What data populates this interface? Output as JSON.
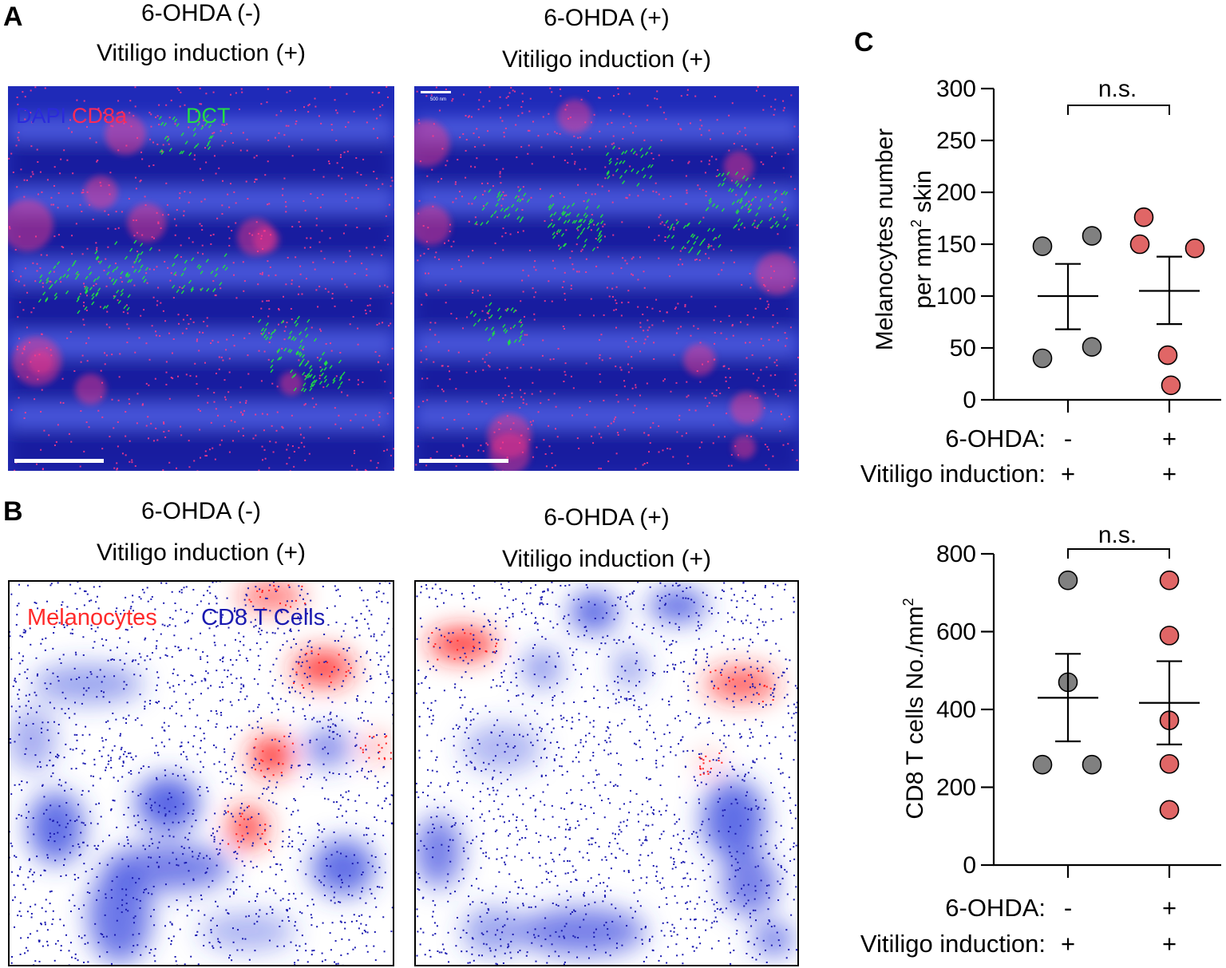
{
  "panel_labels": {
    "a": "A",
    "b": "B",
    "c": "C"
  },
  "panel_a": {
    "left_title_1": "6-OHDA (-)",
    "left_title_2": "Vitiligo induction (+)",
    "right_title_1": "6-OHDA (+)",
    "right_title_2": "Vitiligo induction (+)",
    "legend_dapi": "DAPI",
    "legend_cd8a": "CD8a",
    "legend_dct": "DCT",
    "scale_text": "500 nm",
    "colors": {
      "dapi": "#2a2adb",
      "cd8a": "#ff2a55",
      "dct": "#22dd44",
      "background": "#1f2ab8"
    }
  },
  "panel_b": {
    "left_title_1": "6-OHDA (-)",
    "left_title_2": "Vitiligo induction (+)",
    "right_title_1": "6-OHDA (+)",
    "right_title_2": "Vitiligo induction (+)",
    "legend_melanocytes": "Melanocytes",
    "legend_cd8": "CD8 T Cells",
    "colors": {
      "melanocytes": "#ff2a2a",
      "cd8": "#1a1ab0"
    }
  },
  "chart_data": [
    {
      "type": "scatter",
      "title": "",
      "ylabel": "Melanocytes number per mm² skin",
      "ylabel_line1": "Melanocytes number",
      "ylabel_line2a": "per mm",
      "ylabel_sup": "2",
      "ylabel_line2b": " skin",
      "ylim": [
        0,
        300
      ],
      "yticks": [
        0,
        50,
        100,
        150,
        200,
        250,
        300
      ],
      "significance": "n.s.",
      "row_labels": [
        "6-OHDA:",
        "Vitiligo induction:"
      ],
      "groups": [
        {
          "name": "6-OHDA (-)",
          "ohda": "-",
          "vitiligo": "+",
          "color": "#808080",
          "values": [
            148,
            158,
            40,
            51
          ],
          "mean": 100,
          "sem_low": 68,
          "sem_high": 131
        },
        {
          "name": "6-OHDA (+)",
          "ohda": "+",
          "vitiligo": "+",
          "color": "#e06666",
          "values": [
            176,
            146,
            150,
            43,
            14
          ],
          "mean": 105,
          "sem_low": 73,
          "sem_high": 138
        }
      ]
    },
    {
      "type": "scatter",
      "title": "",
      "ylabel": "CD8 T cells No./mm²",
      "ylabel_main": "CD8 T cells No./mm",
      "ylabel_sup": "2",
      "ylim": [
        0,
        800
      ],
      "yticks": [
        0,
        200,
        400,
        600,
        800
      ],
      "significance": "n.s.",
      "row_labels": [
        "6-OHDA:",
        "Vitiligo induction:"
      ],
      "groups": [
        {
          "name": "6-OHDA (-)",
          "ohda": "-",
          "vitiligo": "+",
          "color": "#808080",
          "values": [
            732,
            470,
            258,
            258
          ],
          "mean": 430,
          "sem_low": 318,
          "sem_high": 543
        },
        {
          "name": "6-OHDA (+)",
          "ohda": "+",
          "vitiligo": "+",
          "color": "#e06666",
          "values": [
            732,
            590,
            372,
            260,
            142
          ],
          "mean": 417,
          "sem_low": 310,
          "sem_high": 524
        }
      ]
    }
  ]
}
